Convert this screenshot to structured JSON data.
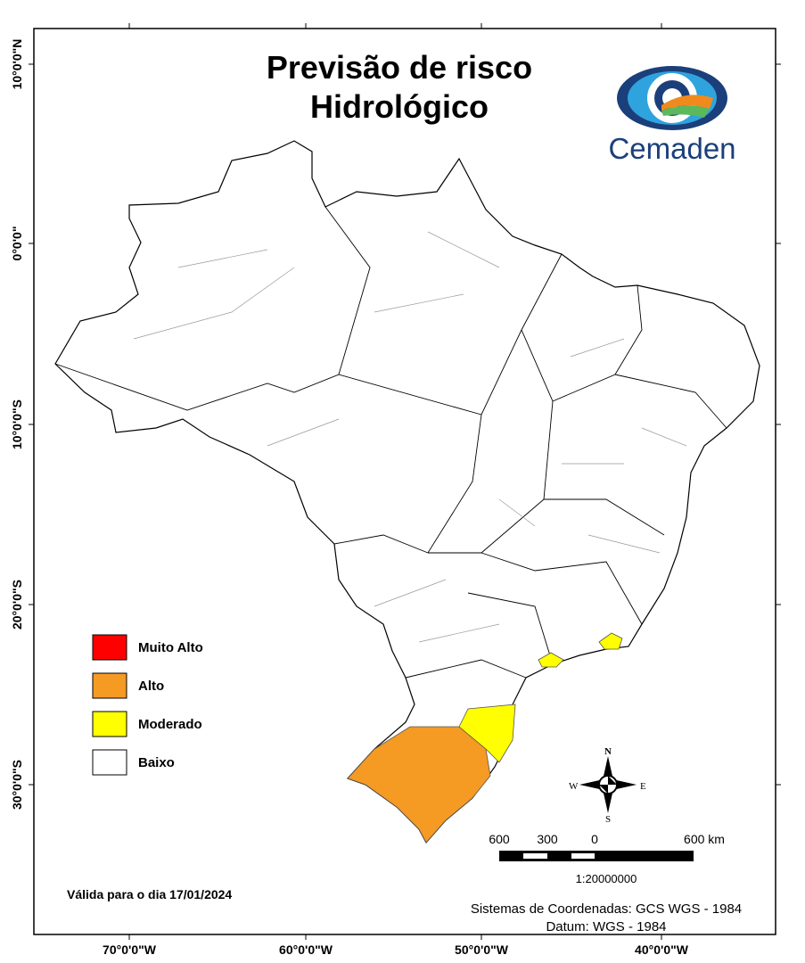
{
  "title": [
    "Previsão de risco",
    "Hidrológico"
  ],
  "logo_text": "Cemaden",
  "legend": [
    {
      "label": "Muito Alto",
      "color": "#ff0000"
    },
    {
      "label": "Alto",
      "color": "#f59a23"
    },
    {
      "label": "Moderado",
      "color": "#ffff00"
    },
    {
      "label": "Baixo",
      "color": "#ffffff"
    }
  ],
  "valid_date": "Válida para o dia 17/01/2024",
  "coordinate_system": "Sistemas de Coordenadas: GCS WGS - 1984",
  "datum": "Datum: WGS - 1984",
  "scale_bar": {
    "labels": [
      "600",
      "300",
      "0",
      "600 km"
    ],
    "ratio": "1:20000000"
  },
  "compass": {
    "n": "N",
    "s": "S",
    "e": "E",
    "w": "W"
  },
  "lat_labels": [
    "10°0'0\"N",
    "0°0'0\"",
    "10°0'0\"S",
    "20°0'0\"S",
    "30°0'0\"S"
  ],
  "lon_labels": [
    "70°0'0\"W",
    "60°0'0\"W",
    "50°0'0\"W",
    "40°0'0\"W"
  ]
}
